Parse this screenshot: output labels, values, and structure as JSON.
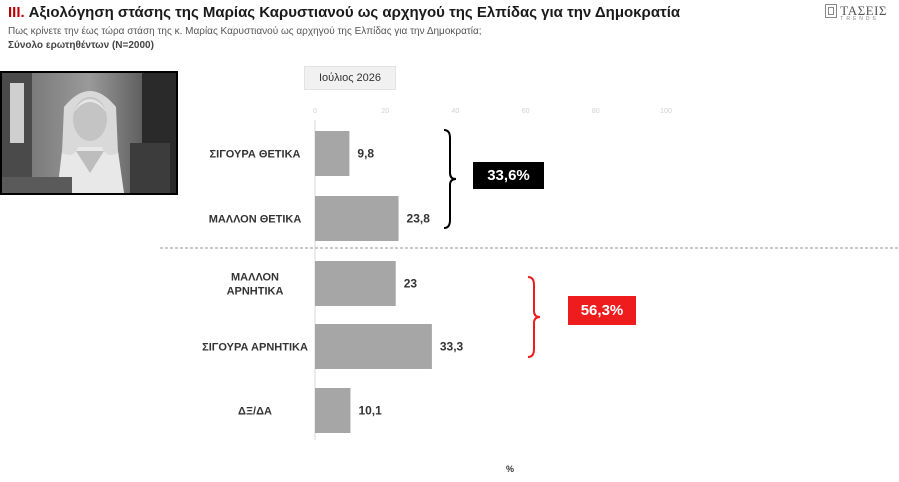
{
  "header": {
    "title_number": "III.",
    "title": "Αξιολόγηση στάσης της Μαρίας Καρυστιανού ως  αρχηγού της Ελπίδας για την Δημοκρατία",
    "question": "Πως κρίνετε την έως τώρα στάση της κ. Μαρίας Καρυστιανού ως  αρχηγού της Ελπίδας για την Δημοκρατία;",
    "base": "Σύνολο ερωτηθέντων (Ν=2000)"
  },
  "logo": {
    "text": "ΤΑΣΕΙΣ",
    "subtext": "TRENDS"
  },
  "colors": {
    "bar": "#a6a6a6",
    "title_accent": "#c00000",
    "positive_bracket": "#000000",
    "negative_bracket": "#ee1c1c",
    "negative_badge": "#ee1c1c",
    "positive_badge": "#000000"
  },
  "chart_data": {
    "type": "bar",
    "orientation": "horizontal",
    "period": "Ιούλιος 2026",
    "categories": [
      "ΣΙΓΟΥΡΑ ΘΕΤΙΚΑ",
      "ΜΑΛΛΟΝ ΘΕΤΙΚΑ",
      "ΜΑΛΛΟΝ ΑΡΝΗΤΙΚΑ",
      "ΣΙΓΟΥΡΑ ΑΡΝΗΤΙΚΑ",
      "ΔΞ/ΔΑ"
    ],
    "values": [
      9.8,
      23.8,
      23,
      33.3,
      10.1
    ],
    "value_labels": [
      "9,8",
      "23,8",
      "23",
      "33,3",
      "10,1"
    ],
    "xlim": [
      0,
      100
    ],
    "xticks": [
      0,
      20,
      40,
      60,
      80,
      100
    ],
    "xlabel": "%",
    "groups": [
      {
        "total_label": "33,6%",
        "members": [
          0,
          1
        ]
      },
      {
        "total_label": "56,3%",
        "members": [
          2,
          3
        ]
      }
    ]
  }
}
